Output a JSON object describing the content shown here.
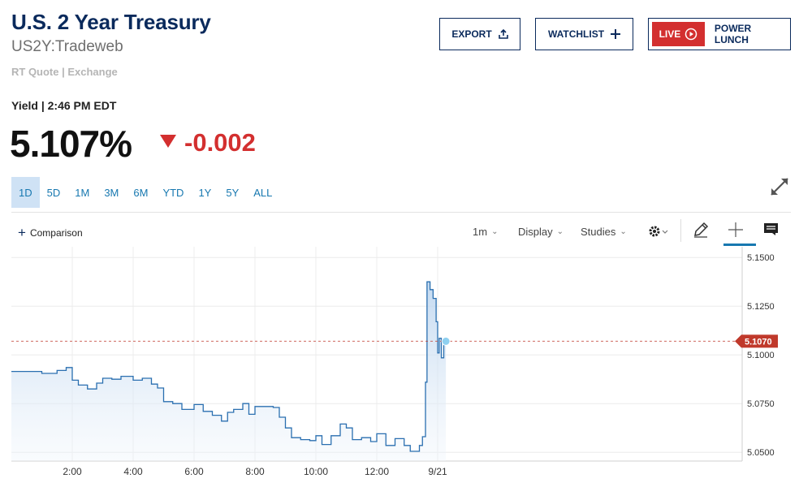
{
  "header": {
    "title": "U.S. 2 Year Treasury",
    "symbol": "US2Y:Tradeweb",
    "quote_source": "RT Quote | Exchange"
  },
  "actions": {
    "export_label": "EXPORT",
    "watchlist_label": "WATCHLIST",
    "live_label": "LIVE",
    "power_lunch_label": "POWER LUNCH"
  },
  "quote": {
    "yield_label": "Yield | 2:46 PM EDT",
    "price": "5.107%",
    "change": "-0.002",
    "change_direction": "down",
    "change_color": "#d32f2f"
  },
  "ranges": [
    "1D",
    "5D",
    "1M",
    "3M",
    "6M",
    "YTD",
    "1Y",
    "5Y",
    "ALL"
  ],
  "active_range": "1D",
  "toolbar": {
    "comparison_label": "Comparison",
    "interval_label": "1m",
    "display_label": "Display",
    "studies_label": "Studies",
    "icons": [
      "gear-icon",
      "pencil-icon",
      "crosshair-icon",
      "comment-icon"
    ]
  },
  "chart_data": {
    "type": "area",
    "title": "",
    "xlabel": "",
    "ylabel": "",
    "x_ticks": [
      "2:00",
      "4:00",
      "6:00",
      "8:00",
      "10:00",
      "12:00",
      "9/21"
    ],
    "x_tick_values": [
      2,
      4,
      6,
      8,
      10,
      12,
      14
    ],
    "y_ticks": [
      "5.1500",
      "5.1250",
      "5.1000",
      "5.0750",
      "5.0500"
    ],
    "y_tick_values": [
      5.15,
      5.125,
      5.1,
      5.075,
      5.05
    ],
    "xlim": [
      0,
      24
    ],
    "ylim": [
      5.0455,
      5.1555
    ],
    "last_value_label": "5.1070",
    "last_value": 5.107,
    "line_color": "#2a6fb0",
    "last_value_color": "#c0392b",
    "grid": true,
    "series": [
      {
        "x": [
          0,
          0.5,
          1.0,
          1.5,
          1.8,
          2.0,
          2.2,
          2.5,
          2.8,
          3.0,
          3.3,
          3.6,
          4.0,
          4.3,
          4.6,
          4.8,
          5.0,
          5.3,
          5.6,
          6.0,
          6.3,
          6.6,
          6.9,
          7.1,
          7.3,
          7.6,
          7.8,
          8.0,
          8.3,
          8.6,
          8.8,
          9.0,
          9.2,
          9.5,
          9.8,
          10.0,
          10.2,
          10.5,
          10.8,
          11.0,
          11.2,
          11.5,
          11.8,
          12.0,
          12.3,
          12.6,
          12.9,
          13.1,
          13.3,
          13.4,
          13.5,
          13.6,
          13.65,
          13.75,
          13.85,
          13.95,
          14.0,
          14.05,
          14.12,
          14.2,
          14.27
        ],
        "y": [
          5.0915,
          5.0915,
          5.0905,
          5.092,
          5.0935,
          5.087,
          5.0845,
          5.0825,
          5.0855,
          5.088,
          5.0875,
          5.089,
          5.087,
          5.088,
          5.085,
          5.083,
          5.076,
          5.075,
          5.072,
          5.0745,
          5.071,
          5.069,
          5.066,
          5.0705,
          5.072,
          5.075,
          5.0695,
          5.0735,
          5.0735,
          5.073,
          5.068,
          5.0625,
          5.0575,
          5.0565,
          5.056,
          5.0585,
          5.054,
          5.0585,
          5.0645,
          5.0625,
          5.0565,
          5.0575,
          5.0555,
          5.0595,
          5.0535,
          5.057,
          5.0535,
          5.0505,
          5.0505,
          5.0535,
          5.058,
          5.086,
          5.1375,
          5.1335,
          5.129,
          5.117,
          5.101,
          5.1085,
          5.0985,
          5.106,
          5.107
        ]
      }
    ]
  }
}
